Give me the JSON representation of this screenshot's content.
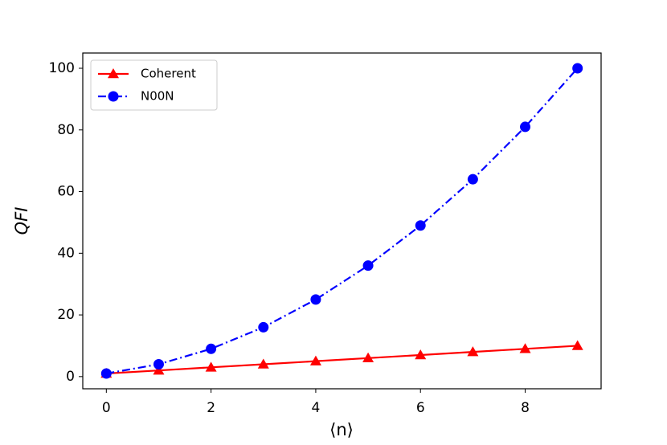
{
  "chart_data": {
    "type": "line",
    "xlabel": "⟨n⟩",
    "ylabel": "QFI",
    "x": [
      0,
      1,
      2,
      3,
      4,
      5,
      6,
      7,
      8,
      9
    ],
    "series": [
      {
        "name": "Coherent",
        "color": "#ff0000",
        "marker": "triangle",
        "linestyle": "solid",
        "values": [
          1,
          2,
          3,
          4,
          5,
          6,
          7,
          8,
          9,
          10
        ]
      },
      {
        "name": "N00N",
        "color": "#0000ff",
        "marker": "circle",
        "linestyle": "dashdot",
        "values": [
          1,
          4,
          9,
          16,
          25,
          36,
          49,
          64,
          81,
          100
        ]
      }
    ],
    "xlim": [
      -0.45,
      9.45
    ],
    "ylim": [
      -3.95,
      104.95
    ],
    "xticks": [
      0,
      2,
      4,
      6,
      8
    ],
    "yticks": [
      0,
      20,
      40,
      60,
      80,
      100
    ],
    "grid": false,
    "legend": "upper left"
  }
}
